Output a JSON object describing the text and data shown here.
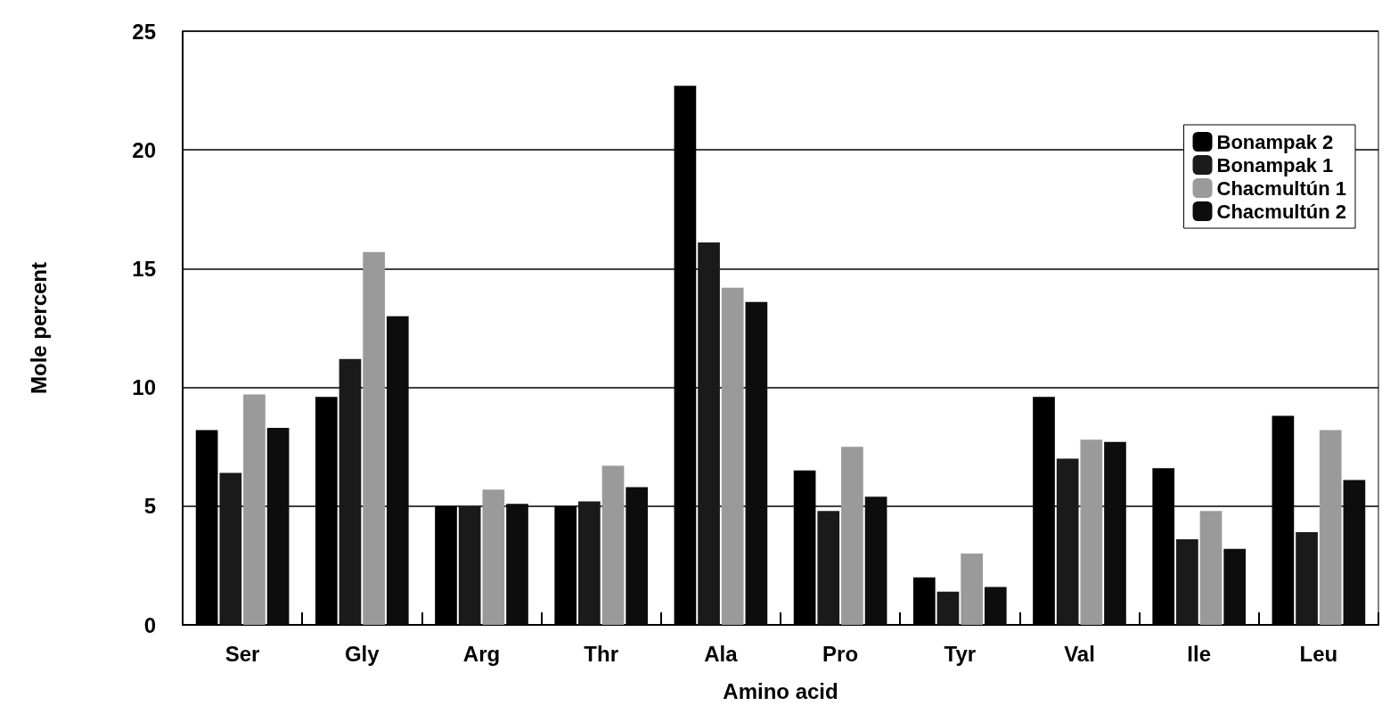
{
  "chart_data": {
    "type": "bar",
    "xlabel": "Amino acid",
    "ylabel": "Mole percent",
    "categories": [
      "Ser",
      "Gly",
      "Arg",
      "Thr",
      "Ala",
      "Pro",
      "Tyr",
      "Val",
      "Ile",
      "Leu"
    ],
    "series": [
      {
        "name": "Bonampak 2",
        "color": "#000000",
        "values": [
          8.2,
          9.6,
          5.0,
          5.0,
          22.7,
          6.5,
          2.0,
          9.6,
          6.6,
          8.8
        ]
      },
      {
        "name": "Bonampak 1",
        "color": "#1a1a1a",
        "values": [
          6.4,
          11.2,
          5.0,
          5.2,
          16.1,
          4.8,
          1.4,
          7.0,
          3.6,
          3.9
        ]
      },
      {
        "name": "Chacmultún 1",
        "color": "#9a9a9a",
        "values": [
          9.7,
          15.7,
          5.7,
          6.7,
          14.2,
          7.5,
          3.0,
          7.8,
          4.8,
          8.2
        ]
      },
      {
        "name": "Chacmultún 2",
        "color": "#0d0d0d",
        "values": [
          8.3,
          13.0,
          5.1,
          5.8,
          13.6,
          5.4,
          1.6,
          7.7,
          3.2,
          6.1
        ]
      }
    ],
    "ylim": [
      0,
      25
    ],
    "yticks": [
      0,
      5,
      10,
      15,
      20,
      25
    ],
    "grid": "y",
    "legend": "top right"
  }
}
